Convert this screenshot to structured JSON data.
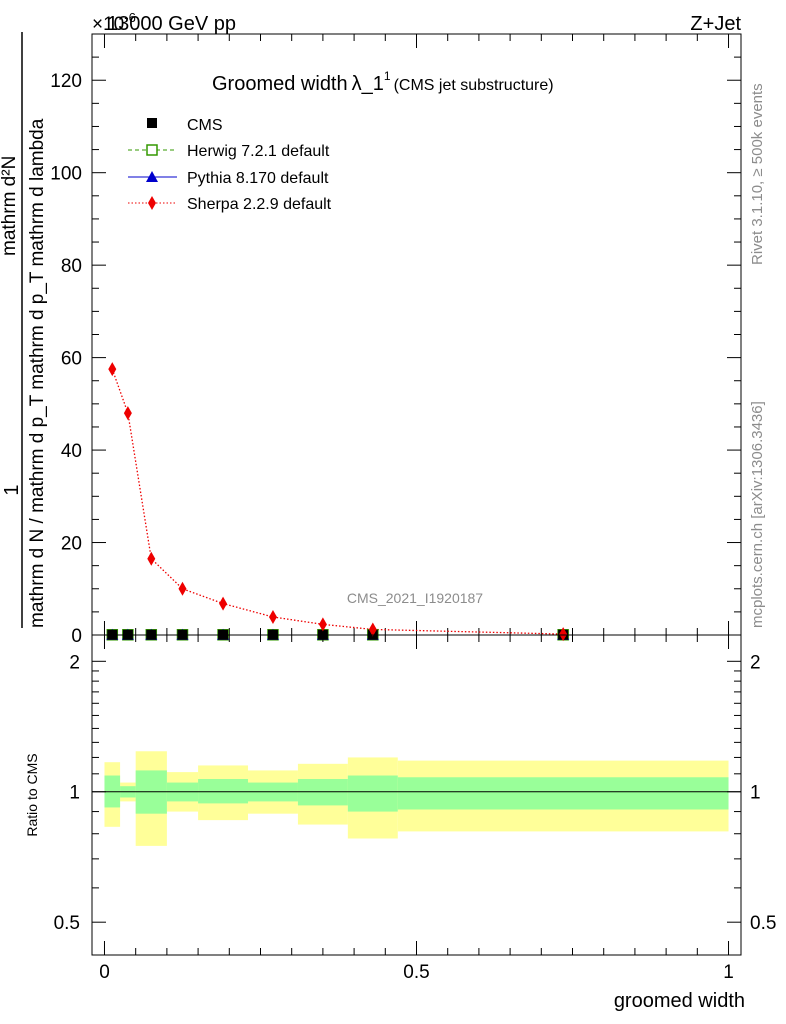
{
  "header": {
    "energy": "13000 GeV pp",
    "process": "Z+Jet",
    "exponent": "×10",
    "exponent_power": "-6"
  },
  "side_labels": {
    "rivet": "Rivet 3.1.10, ≥ 500k events",
    "mcplots": "mcplots.cern.ch [arXiv:1306.3436]"
  },
  "watermark": "CMS_2021_I1920187",
  "chart_data": [
    {
      "type": "line",
      "title": "Groomed width",
      "title_symbol": "λ_1",
      "title_sup": "1",
      "subtitle": "(CMS jet substructure)",
      "xlabel": "groomed width",
      "ylabel_numerator": "mathrm d²N",
      "ylabel_denominator": "mathrm d N / mathrm d p_T mathrm d p_T mathrm d lambda",
      "ylabel_one": "1",
      "xlim": [
        -0.02,
        1.02
      ],
      "ylim": [
        0,
        130
      ],
      "yticks": [
        0,
        20,
        40,
        60,
        80,
        100,
        120
      ],
      "ytick_labels": [
        "0",
        "20",
        "40",
        "60",
        "80",
        "100",
        "120"
      ],
      "legend_position": "top-left",
      "series": [
        {
          "name": "CMS",
          "marker": "square",
          "color": "#000000",
          "x": [
            0.0125,
            0.0375,
            0.075,
            0.125,
            0.19,
            0.27,
            0.35,
            0.43,
            0.735
          ],
          "y": [
            0.05,
            0.05,
            0.05,
            0.05,
            0.05,
            0.05,
            0.05,
            0.05,
            0.05
          ]
        },
        {
          "name": "Herwig 7.2.1 default",
          "marker": "open-square",
          "color": "#339900",
          "x": [
            0.0125,
            0.0375,
            0.075,
            0.125,
            0.19,
            0.27,
            0.35,
            0.43,
            0.735
          ],
          "y": [
            0.05,
            0.05,
            0.05,
            0.05,
            0.05,
            0.05,
            0.05,
            0.05,
            0.05
          ]
        },
        {
          "name": "Pythia 8.170 default",
          "marker": "triangle",
          "color": "#0000cc",
          "x": [
            0.0125,
            0.0375,
            0.075,
            0.125,
            0.19,
            0.27,
            0.35,
            0.43,
            0.735
          ],
          "y": [
            0.05,
            0.05,
            0.05,
            0.05,
            0.05,
            0.05,
            0.05,
            0.05,
            0.05
          ]
        },
        {
          "name": "Sherpa 2.2.9 default",
          "marker": "diamond",
          "color": "#ee0000",
          "x": [
            0.0125,
            0.0375,
            0.075,
            0.125,
            0.19,
            0.27,
            0.35,
            0.43,
            0.735
          ],
          "y": [
            57.5,
            48.0,
            16.5,
            10.0,
            6.8,
            3.9,
            2.3,
            1.2,
            0.2
          ]
        }
      ]
    },
    {
      "type": "area",
      "ylabel": "Ratio to CMS",
      "xlabel": "groomed width",
      "xlim": [
        -0.02,
        1.02
      ],
      "ylim": [
        0.42,
        2.3
      ],
      "yscale": "log",
      "yticks": [
        0.5,
        1,
        2
      ],
      "ytick_labels": [
        "0.5",
        "1",
        "2"
      ],
      "xticks": [
        0,
        0.5,
        1
      ],
      "xtick_labels": [
        "0",
        "0.5",
        "1"
      ],
      "bins": [
        {
          "lo": 0.0,
          "hi": 0.025,
          "stat_lo": 0.92,
          "stat_hi": 1.09,
          "tot_lo": 0.83,
          "tot_hi": 1.17
        },
        {
          "lo": 0.025,
          "hi": 0.05,
          "stat_lo": 0.97,
          "stat_hi": 1.03,
          "tot_lo": 0.95,
          "tot_hi": 1.05
        },
        {
          "lo": 0.05,
          "hi": 0.1,
          "stat_lo": 0.89,
          "stat_hi": 1.12,
          "tot_lo": 0.75,
          "tot_hi": 1.24
        },
        {
          "lo": 0.1,
          "hi": 0.15,
          "stat_lo": 0.95,
          "stat_hi": 1.05,
          "tot_lo": 0.9,
          "tot_hi": 1.11
        },
        {
          "lo": 0.15,
          "hi": 0.23,
          "stat_lo": 0.94,
          "stat_hi": 1.07,
          "tot_lo": 0.86,
          "tot_hi": 1.15
        },
        {
          "lo": 0.23,
          "hi": 0.31,
          "stat_lo": 0.95,
          "stat_hi": 1.05,
          "tot_lo": 0.89,
          "tot_hi": 1.12
        },
        {
          "lo": 0.31,
          "hi": 0.39,
          "stat_lo": 0.93,
          "stat_hi": 1.07,
          "tot_lo": 0.84,
          "tot_hi": 1.16
        },
        {
          "lo": 0.39,
          "hi": 0.47,
          "stat_lo": 0.9,
          "stat_hi": 1.09,
          "tot_lo": 0.78,
          "tot_hi": 1.2
        },
        {
          "lo": 0.47,
          "hi": 1.0,
          "stat_lo": 0.91,
          "stat_hi": 1.08,
          "tot_lo": 0.81,
          "tot_hi": 1.18
        }
      ]
    }
  ]
}
